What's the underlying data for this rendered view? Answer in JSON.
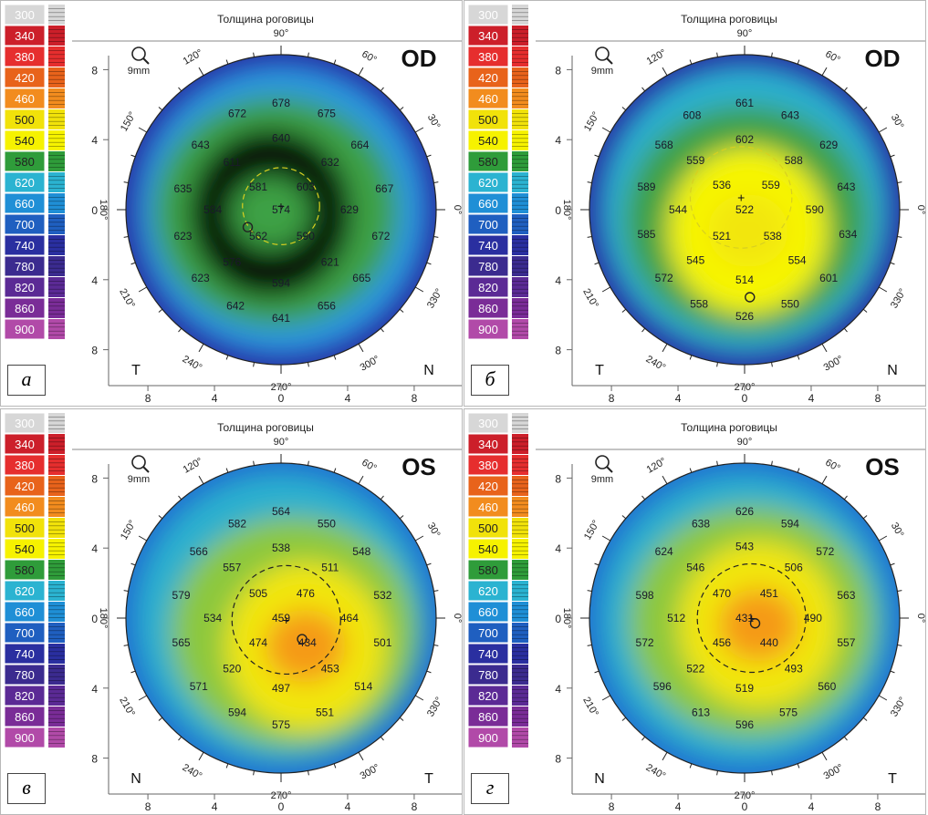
{
  "colors": {
    "scale": [
      "#d7d7d7",
      "#cc1f2a",
      "#e62e2e",
      "#e8631b",
      "#f28c1e",
      "#f1e20a",
      "#f6f200",
      "#2f9c3a",
      "#2bb3d1",
      "#1f8fd6",
      "#1f5fc0",
      "#2a2fa0",
      "#3b2b8f",
      "#5b2a95",
      "#7a2c97",
      "#b14aa8"
    ],
    "thickness": {
      "430": "#ea5a16",
      "470": "#f59a17",
      "510": "#f2e60f",
      "540": "#f7f502",
      "570": "#8cc83c",
      "600": "#3ea145",
      "630": "#2bb0cf",
      "660": "#2b9ae0",
      "700": "#1f6ed0",
      "760": "#262ea2",
      "820": "#3b238a",
      "900": "#58248f"
    }
  },
  "legend": [
    "300",
    "340",
    "380",
    "420",
    "460",
    "500",
    "540",
    "580",
    "620",
    "660",
    "700",
    "740",
    "780",
    "820",
    "860",
    "900"
  ],
  "header_title": "Толщина роговицы",
  "magnifier_label": "9mm",
  "axis_ticks": [
    "8",
    "4",
    "0",
    "4",
    "8"
  ],
  "angle_labels": {
    "a90": "90°",
    "a60": "60°",
    "a30": "30°",
    "a0": "0°",
    "a330": "330°",
    "a300": "300°",
    "a270": "270°",
    "a240": "240°",
    "a210": "210°",
    "a180": "180°",
    "a150": "150°",
    "a120": "120°"
  },
  "panels": [
    {
      "label": "а",
      "eye": "OD",
      "left_letter": "T",
      "right_letter": "N",
      "fields": {
        "edge": 760,
        "outer": 660,
        "mid": 600,
        "inner": 580,
        "core": 600
      },
      "blob_center": [
        -0.6,
        0.2
      ],
      "pupil": [
        0,
        -0.2
      ],
      "pupil_r": 2.2,
      "apex": [
        -1.9,
        1.0
      ],
      "readings": [
        {
          "v": "678",
          "x": 0,
          "y": -6.1
        },
        {
          "v": "672",
          "x": -2.5,
          "y": -5.5
        },
        {
          "v": "675",
          "x": 2.6,
          "y": -5.5
        },
        {
          "v": "643",
          "x": -4.6,
          "y": -3.7
        },
        {
          "v": "640",
          "x": 0,
          "y": -4.1
        },
        {
          "v": "664",
          "x": 4.5,
          "y": -3.7
        },
        {
          "v": "611",
          "x": -2.8,
          "y": -2.7
        },
        {
          "v": "632",
          "x": 2.8,
          "y": -2.7
        },
        {
          "v": "635",
          "x": -5.6,
          "y": -1.2
        },
        {
          "v": "581",
          "x": -1.3,
          "y": -1.3
        },
        {
          "v": "603",
          "x": 1.4,
          "y": -1.3
        },
        {
          "v": "667",
          "x": 5.9,
          "y": -1.2
        },
        {
          "v": "584",
          "x": -3.9,
          "y": 0
        },
        {
          "v": "574",
          "x": 0,
          "y": 0
        },
        {
          "v": "629",
          "x": 3.9,
          "y": 0
        },
        {
          "v": "623",
          "x": -5.6,
          "y": 1.5
        },
        {
          "v": "562",
          "x": -1.3,
          "y": 1.5
        },
        {
          "v": "590",
          "x": 1.4,
          "y": 1.5
        },
        {
          "v": "672",
          "x": 5.7,
          "y": 1.5
        },
        {
          "v": "576",
          "x": -2.8,
          "y": 3.0
        },
        {
          "v": "621",
          "x": 2.8,
          "y": 3.0
        },
        {
          "v": "623",
          "x": -4.6,
          "y": 3.9
        },
        {
          "v": "594",
          "x": 0,
          "y": 4.2
        },
        {
          "v": "665",
          "x": 4.6,
          "y": 3.9
        },
        {
          "v": "642",
          "x": -2.6,
          "y": 5.5
        },
        {
          "v": "656",
          "x": 2.6,
          "y": 5.5
        },
        {
          "v": "641",
          "x": 0,
          "y": 6.2
        }
      ]
    },
    {
      "label": "б",
      "eye": "OD",
      "left_letter": "T",
      "right_letter": "N",
      "fields": {
        "edge": 760,
        "outer": 630,
        "mid": 600,
        "inner": 540,
        "core": 510
      },
      "blob_center": [
        0.2,
        1.2
      ],
      "pupil": [
        -0.2,
        -0.7
      ],
      "pupil_r": 2.9,
      "apex": [
        0.3,
        5.0
      ],
      "readings": [
        {
          "v": "661",
          "x": 0,
          "y": -6.1
        },
        {
          "v": "608",
          "x": -3.0,
          "y": -5.4
        },
        {
          "v": "643",
          "x": 2.6,
          "y": -5.4
        },
        {
          "v": "568",
          "x": -4.6,
          "y": -3.7
        },
        {
          "v": "602",
          "x": 0,
          "y": -4.0
        },
        {
          "v": "629",
          "x": 4.8,
          "y": -3.7
        },
        {
          "v": "559",
          "x": -2.8,
          "y": -2.8
        },
        {
          "v": "588",
          "x": 2.8,
          "y": -2.8
        },
        {
          "v": "589",
          "x": -5.6,
          "y": -1.3
        },
        {
          "v": "536",
          "x": -1.3,
          "y": -1.4
        },
        {
          "v": "559",
          "x": 1.5,
          "y": -1.4
        },
        {
          "v": "643",
          "x": 5.8,
          "y": -1.3
        },
        {
          "v": "544",
          "x": -3.8,
          "y": 0
        },
        {
          "v": "522",
          "x": 0,
          "y": 0
        },
        {
          "v": "590",
          "x": 4.0,
          "y": 0
        },
        {
          "v": "585",
          "x": -5.6,
          "y": 1.4
        },
        {
          "v": "521",
          "x": -1.3,
          "y": 1.5
        },
        {
          "v": "538",
          "x": 1.6,
          "y": 1.5
        },
        {
          "v": "634",
          "x": 5.9,
          "y": 1.4
        },
        {
          "v": "545",
          "x": -2.8,
          "y": 2.9
        },
        {
          "v": "554",
          "x": 3.0,
          "y": 2.9
        },
        {
          "v": "572",
          "x": -4.6,
          "y": 3.9
        },
        {
          "v": "514",
          "x": 0,
          "y": 4.0
        },
        {
          "v": "601",
          "x": 4.8,
          "y": 3.9
        },
        {
          "v": "558",
          "x": -2.6,
          "y": 5.4
        },
        {
          "v": "550",
          "x": 2.6,
          "y": 5.4
        },
        {
          "v": "526",
          "x": 0,
          "y": 6.1
        }
      ]
    },
    {
      "label": "в",
      "eye": "OS",
      "left_letter": "N",
      "right_letter": "T",
      "fields": {
        "edge": 700,
        "outer": 630,
        "mid": 570,
        "inner": 510,
        "core": 470
      },
      "blob_center": [
        1.4,
        1.6
      ],
      "pupil": [
        0.3,
        0.1
      ],
      "pupil_r": 3.1,
      "apex": [
        1.2,
        1.2
      ],
      "readings": [
        {
          "v": "564",
          "x": 0,
          "y": -6.1
        },
        {
          "v": "582",
          "x": -2.5,
          "y": -5.4
        },
        {
          "v": "550",
          "x": 2.6,
          "y": -5.4
        },
        {
          "v": "566",
          "x": -4.7,
          "y": -3.8
        },
        {
          "v": "538",
          "x": 0,
          "y": -4.0
        },
        {
          "v": "548",
          "x": 4.6,
          "y": -3.8
        },
        {
          "v": "557",
          "x": -2.8,
          "y": -2.9
        },
        {
          "v": "511",
          "x": 2.8,
          "y": -2.9
        },
        {
          "v": "579",
          "x": -5.7,
          "y": -1.3
        },
        {
          "v": "505",
          "x": -1.3,
          "y": -1.4
        },
        {
          "v": "476",
          "x": 1.4,
          "y": -1.4
        },
        {
          "v": "532",
          "x": 5.8,
          "y": -1.3
        },
        {
          "v": "534",
          "x": -3.9,
          "y": 0
        },
        {
          "v": "459",
          "x": 0,
          "y": 0
        },
        {
          "v": "464",
          "x": 3.9,
          "y": 0
        },
        {
          "v": "565",
          "x": -5.7,
          "y": 1.4
        },
        {
          "v": "474",
          "x": -1.3,
          "y": 1.4
        },
        {
          "v": "434",
          "x": 1.5,
          "y": 1.4
        },
        {
          "v": "501",
          "x": 5.8,
          "y": 1.4
        },
        {
          "v": "520",
          "x": -2.8,
          "y": 2.9
        },
        {
          "v": "453",
          "x": 2.8,
          "y": 2.9
        },
        {
          "v": "571",
          "x": -4.7,
          "y": 3.9
        },
        {
          "v": "497",
          "x": 0,
          "y": 4.0
        },
        {
          "v": "514",
          "x": 4.7,
          "y": 3.9
        },
        {
          "v": "594",
          "x": -2.5,
          "y": 5.4
        },
        {
          "v": "551",
          "x": 2.5,
          "y": 5.4
        },
        {
          "v": "575",
          "x": 0,
          "y": 6.1
        }
      ]
    },
    {
      "label": "г",
      "eye": "OS",
      "left_letter": "N",
      "right_letter": "T",
      "fields": {
        "edge": 700,
        "outer": 630,
        "mid": 570,
        "inner": 510,
        "core": 470
      },
      "blob_center": [
        0.8,
        0.4
      ],
      "pupil": [
        0.4,
        0
      ],
      "pupil_r": 3.1,
      "apex": [
        0.6,
        0.3
      ],
      "readings": [
        {
          "v": "626",
          "x": 0,
          "y": -6.1
        },
        {
          "v": "638",
          "x": -2.5,
          "y": -5.4
        },
        {
          "v": "594",
          "x": 2.6,
          "y": -5.4
        },
        {
          "v": "624",
          "x": -4.6,
          "y": -3.8
        },
        {
          "v": "543",
          "x": 0,
          "y": -4.1
        },
        {
          "v": "572",
          "x": 4.6,
          "y": -3.8
        },
        {
          "v": "546",
          "x": -2.8,
          "y": -2.9
        },
        {
          "v": "506",
          "x": 2.8,
          "y": -2.9
        },
        {
          "v": "598",
          "x": -5.7,
          "y": -1.3
        },
        {
          "v": "470",
          "x": -1.3,
          "y": -1.4
        },
        {
          "v": "451",
          "x": 1.4,
          "y": -1.4
        },
        {
          "v": "563",
          "x": 5.8,
          "y": -1.3
        },
        {
          "v": "512",
          "x": -3.9,
          "y": 0
        },
        {
          "v": "431",
          "x": 0,
          "y": 0
        },
        {
          "v": "490",
          "x": 3.9,
          "y": 0
        },
        {
          "v": "572",
          "x": -5.7,
          "y": 1.4
        },
        {
          "v": "456",
          "x": -1.3,
          "y": 1.4
        },
        {
          "v": "440",
          "x": 1.4,
          "y": 1.4
        },
        {
          "v": "557",
          "x": 5.8,
          "y": 1.4
        },
        {
          "v": "522",
          "x": -2.8,
          "y": 2.9
        },
        {
          "v": "493",
          "x": 2.8,
          "y": 2.9
        },
        {
          "v": "596",
          "x": -4.7,
          "y": 3.9
        },
        {
          "v": "519",
          "x": 0,
          "y": 4.0
        },
        {
          "v": "560",
          "x": 4.7,
          "y": 3.9
        },
        {
          "v": "613",
          "x": -2.5,
          "y": 5.4
        },
        {
          "v": "575",
          "x": 2.5,
          "y": 5.4
        },
        {
          "v": "596",
          "x": 0,
          "y": 6.1
        }
      ]
    }
  ]
}
